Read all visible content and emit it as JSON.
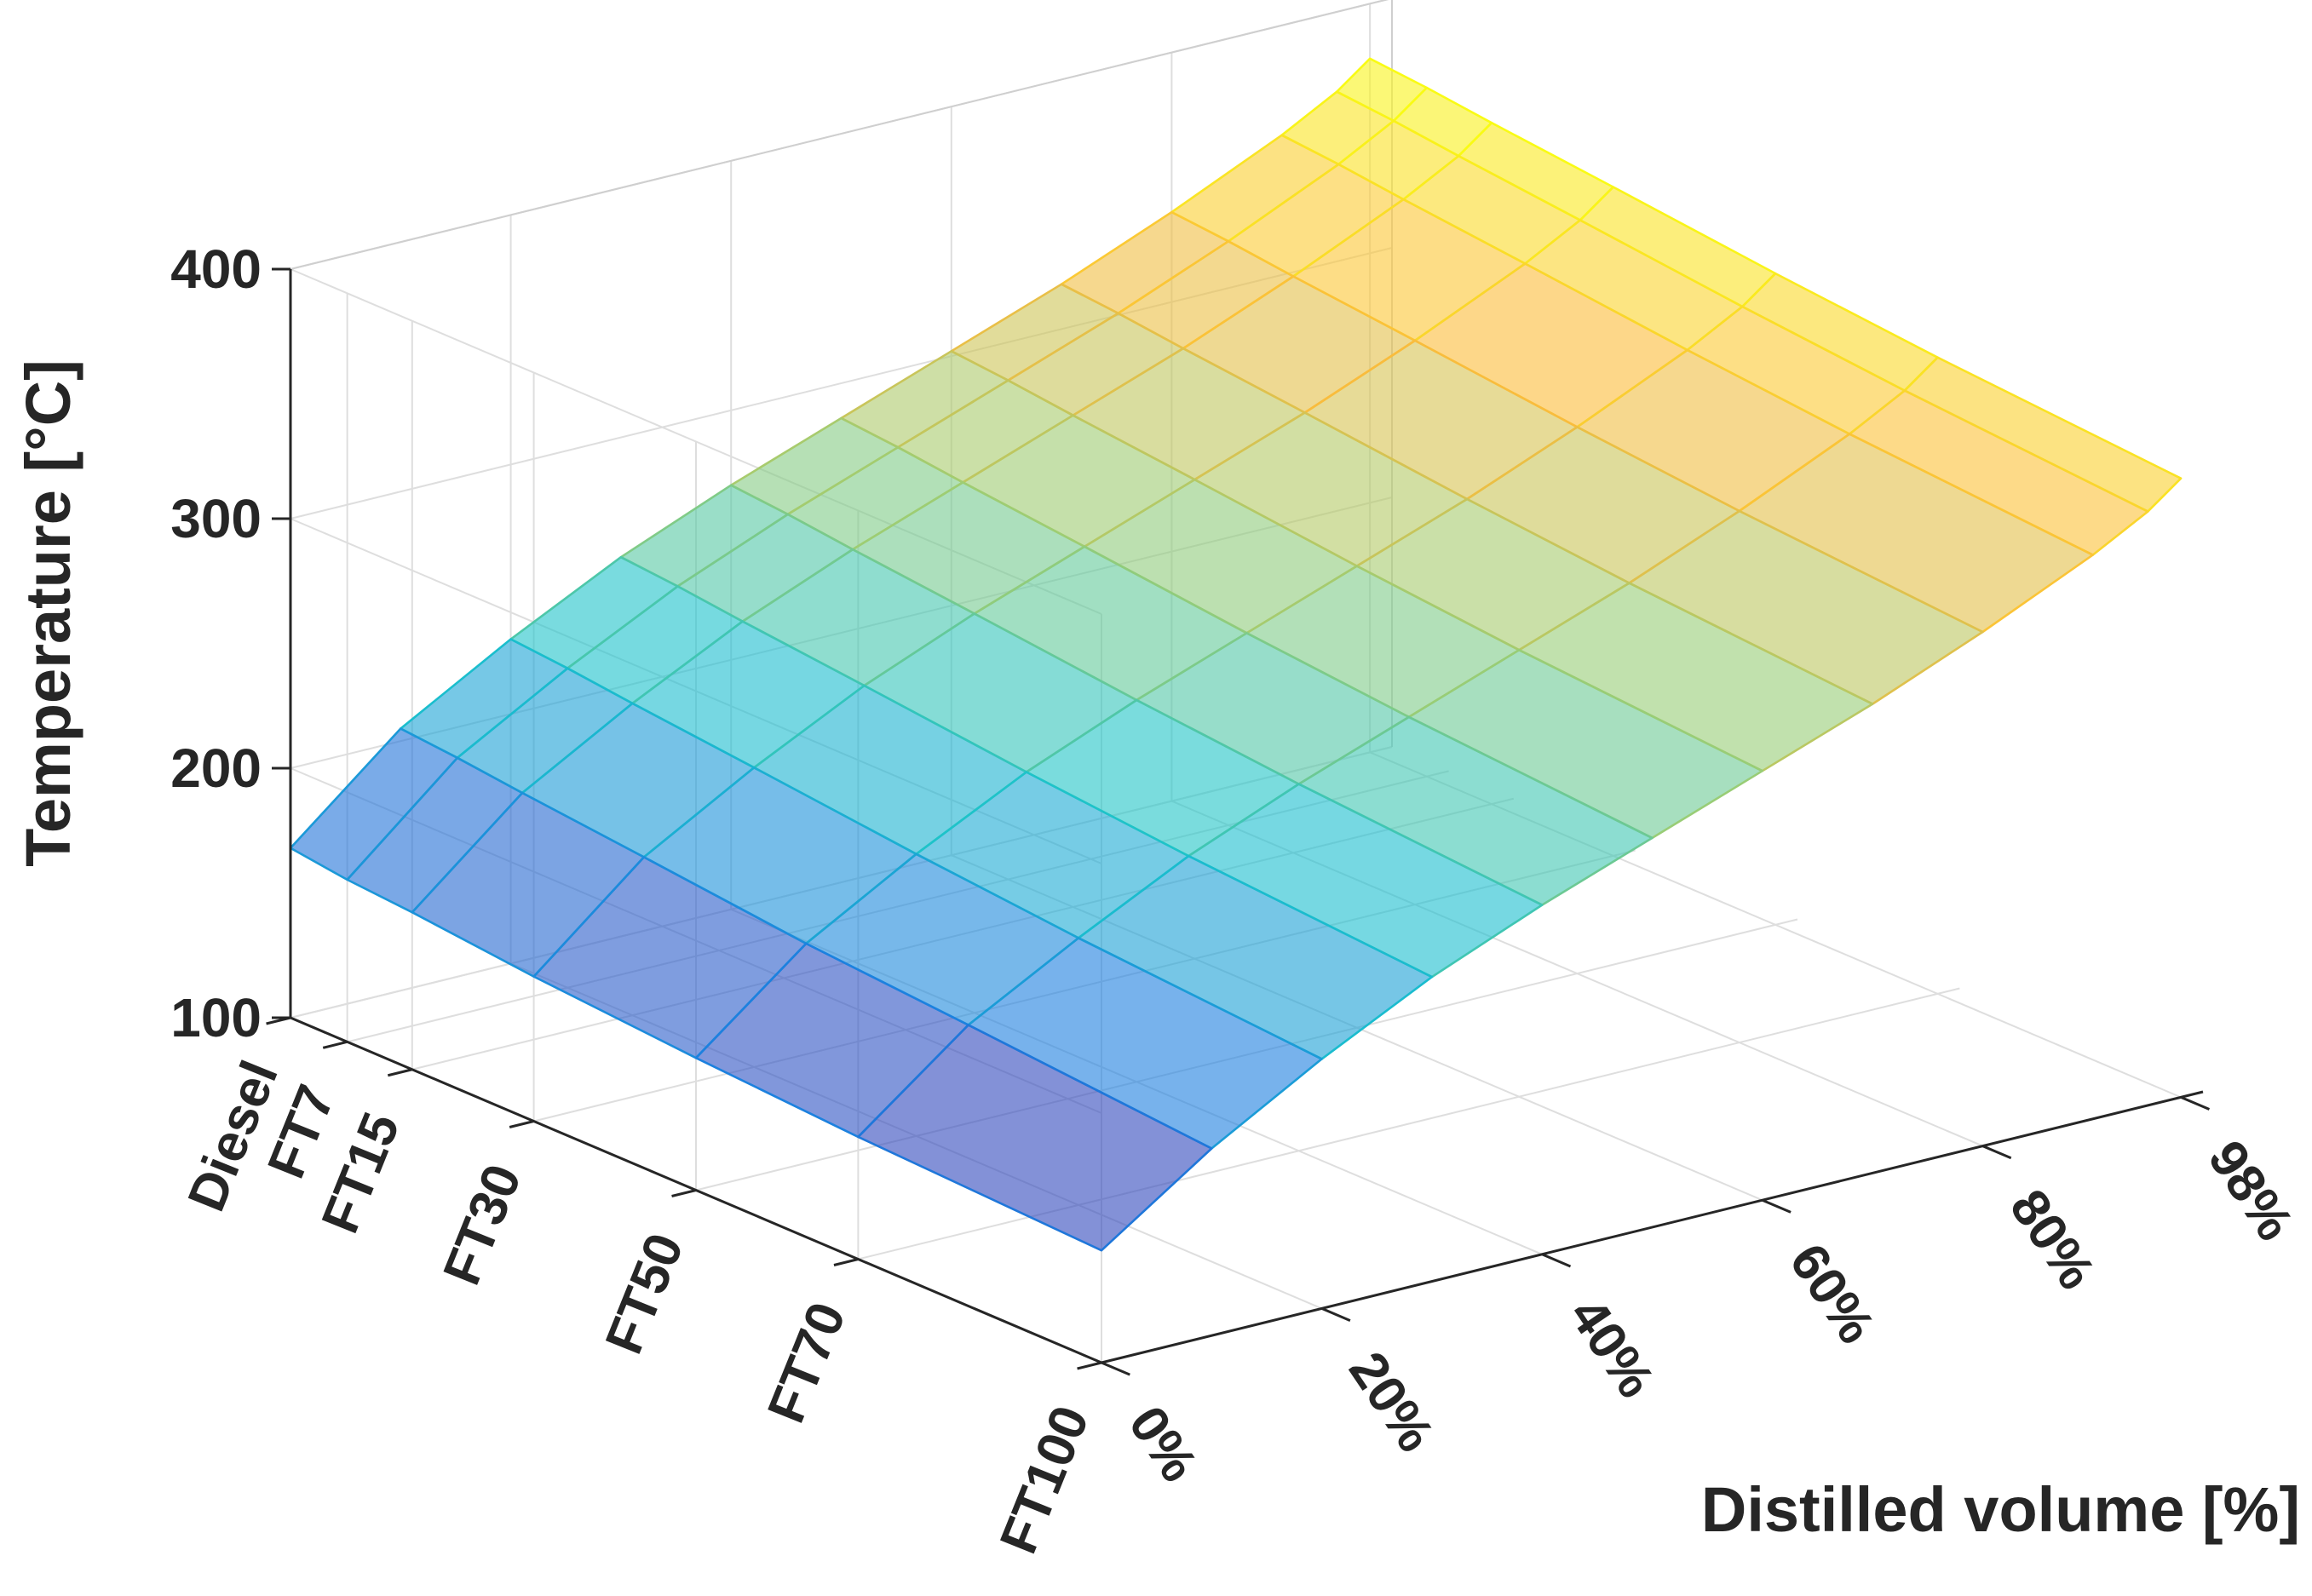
{
  "chart_data": {
    "type": "surface",
    "title": "",
    "zlabel": "Temperature [°C]",
    "xlabel": "Distilled volume [%]",
    "ylabel": "",
    "zlim": [
      100,
      400
    ],
    "z_ticks": [
      "100",
      "200",
      "300",
      "400"
    ],
    "distilled_volume_percent": [
      0,
      10,
      20,
      30,
      40,
      50,
      60,
      70,
      80,
      90,
      95,
      98
    ],
    "x_tick_labels": [
      {
        "value": 0,
        "label": "0%"
      },
      {
        "value": 20,
        "label": "20%"
      },
      {
        "value": 40,
        "label": "40%"
      },
      {
        "value": 60,
        "label": "60%"
      },
      {
        "value": 80,
        "label": "80%"
      },
      {
        "value": 98,
        "label": "98%"
      }
    ],
    "fuels": [
      "Diesel",
      "FT7",
      "FT15",
      "FT30",
      "FT50",
      "FT70",
      "FT100"
    ],
    "fuel_ft_share": [
      0,
      7,
      15,
      30,
      50,
      70,
      100
    ],
    "series": [
      {
        "name": "Diesel",
        "values": [
          168,
          205,
          230,
          252,
          270,
          286,
          302,
          318,
          336,
          356,
          368,
          378
        ]
      },
      {
        "name": "FT7",
        "values": [
          165,
          203,
          228,
          250,
          268,
          284,
          300,
          316,
          334,
          354,
          366,
          376
        ]
      },
      {
        "name": "FT15",
        "values": [
          163,
          200,
          225,
          247,
          265,
          281,
          297,
          313,
          331,
          351,
          363,
          373
        ]
      },
      {
        "name": "FT30",
        "values": [
          158,
          195,
          220,
          242,
          260,
          276,
          292,
          308,
          326,
          346,
          358,
          368
        ]
      },
      {
        "name": "FT50",
        "values": [
          153,
          188,
          213,
          235,
          253,
          269,
          285,
          301,
          319,
          339,
          351,
          361
        ]
      },
      {
        "name": "FT70",
        "values": [
          149,
          183,
          207,
          229,
          247,
          263,
          279,
          295,
          313,
          333,
          345,
          355
        ]
      },
      {
        "name": "FT100",
        "values": [
          145,
          175,
          200,
          222,
          240,
          256,
          272,
          288,
          306,
          326,
          338,
          348
        ]
      }
    ],
    "colormap": [
      "#3e26a8",
      "#1c7fdf",
      "#1ac3cc",
      "#9ccd74",
      "#fbbc3c",
      "#f9fb15"
    ]
  }
}
